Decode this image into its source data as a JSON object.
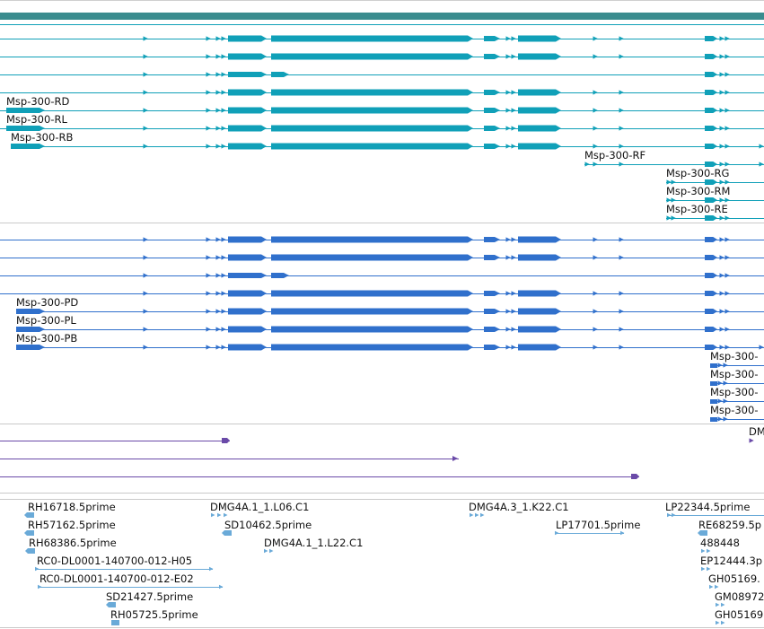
{
  "colors": {
    "header_bar": "#3a8c8e",
    "transcript": "#10a0b8",
    "protein": "#3070cc",
    "cdna": "#6a4aa8",
    "est": "#6aaad8"
  },
  "transcripts": {
    "labels": [
      "Msp-300-RD",
      "Msp-300-RL",
      "Msp-300-RB",
      "Msp-300-RF",
      "Msp-300-RG",
      "Msp-300-RM",
      "Msp-300-RE"
    ]
  },
  "proteins": {
    "labels": [
      "Msp-300-PD",
      "Msp-300-PL",
      "Msp-300-PB",
      "Msp-300-",
      "Msp-300-",
      "Msp-300-",
      "Msp-300-"
    ]
  },
  "cdna": {
    "labels": [
      "DM"
    ]
  },
  "ests": {
    "labels": [
      "RH16718.5prime",
      "RH57162.5prime",
      "RH68386.5prime",
      "RC0-DL0001-140700-012-H05",
      "RC0-DL0001-140700-012-E02",
      "SD21427.5prime",
      "RH05725.5prime",
      "DMG4A.1_1.L06.C1",
      "SD10462.5prime",
      "DMG4A.1_1.L22.C1",
      "DMG4A.3_1.K22.C1",
      "LP17701.5prime",
      "LP22344.5prime",
      "RE68259.5p",
      "488448",
      "EP12444.3p",
      "GH05169.",
      "GM08972",
      "GH05169"
    ]
  }
}
